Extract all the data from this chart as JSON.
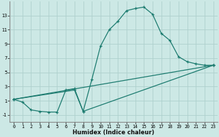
{
  "xlabel": "Humidex (Indice chaleur)",
  "ylabel": "",
  "background_color": "#cce8e5",
  "line_color": "#1a7a6e",
  "grid_color": "#aed0cc",
  "line1_x": [
    0,
    1,
    2,
    3,
    4,
    5,
    6,
    7,
    8,
    9,
    10,
    11,
    12,
    13,
    14,
    15,
    16,
    17,
    18,
    19,
    20,
    21,
    22,
    23
  ],
  "line1_y": [
    1.2,
    0.8,
    -0.3,
    -0.5,
    -0.6,
    -0.6,
    2.5,
    2.7,
    -0.5,
    4.0,
    8.7,
    11.0,
    12.2,
    13.7,
    14.0,
    14.2,
    13.2,
    10.5,
    9.5,
    7.2,
    6.5,
    6.2,
    6.0,
    6.0
  ],
  "line2_x": [
    0,
    23
  ],
  "line2_y": [
    1.2,
    6.0
  ],
  "line3_x": [
    0,
    7,
    8,
    23
  ],
  "line3_y": [
    1.2,
    2.5,
    -0.5,
    6.0
  ],
  "xlim": [
    -0.5,
    23.5
  ],
  "ylim": [
    -2,
    15
  ],
  "yticks": [
    -1,
    1,
    3,
    5,
    7,
    9,
    11,
    13
  ],
  "xticks": [
    0,
    1,
    2,
    3,
    4,
    5,
    6,
    7,
    8,
    9,
    10,
    11,
    12,
    13,
    14,
    15,
    16,
    17,
    18,
    19,
    20,
    21,
    22,
    23
  ],
  "xlabel_fontsize": 6.0,
  "tick_fontsize": 4.8,
  "linewidth": 0.9,
  "markersize": 3.5
}
